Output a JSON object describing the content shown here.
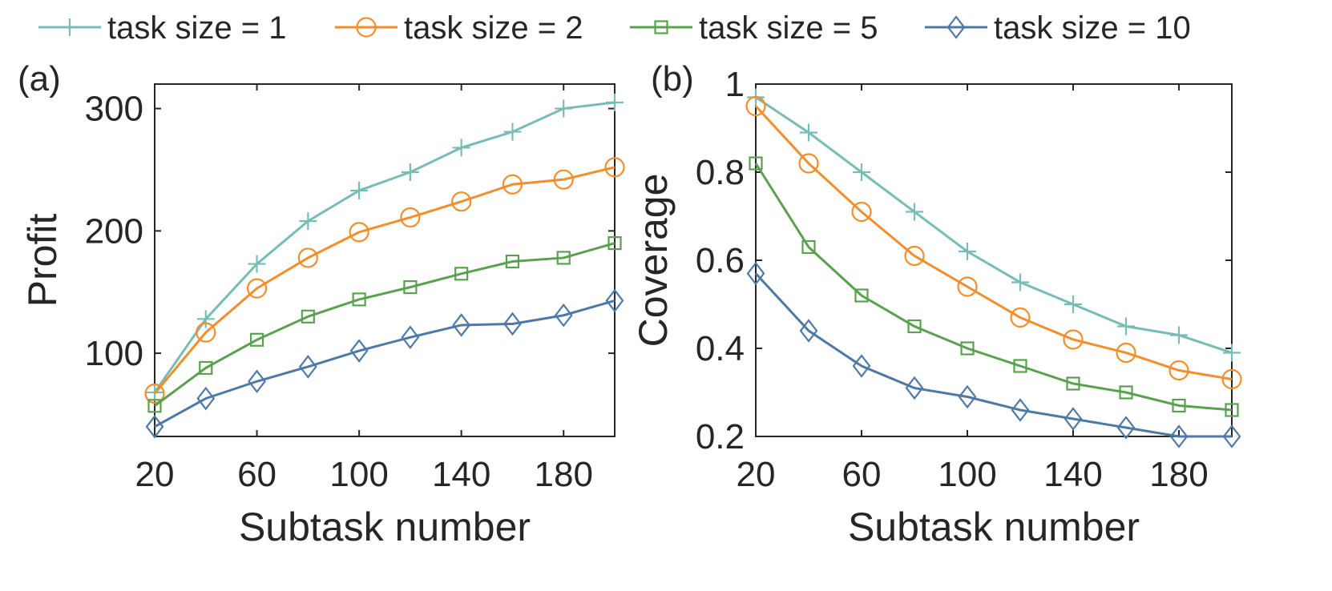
{
  "legend": [
    {
      "name": "task size = 1",
      "color": "#78BDB5",
      "marker": "plus"
    },
    {
      "name": "task size = 2",
      "color": "#F28E2B",
      "marker": "circle"
    },
    {
      "name": "task size = 5",
      "color": "#59A14F",
      "marker": "square"
    },
    {
      "name": "task size = 10",
      "color": "#4E79A7",
      "marker": "diamond"
    }
  ],
  "chart_data": [
    {
      "type": "line",
      "panel_label": "(a)",
      "xlabel": "Subtask number",
      "ylabel": "Profit",
      "xlim": [
        20,
        200
      ],
      "ylim": [
        32,
        320
      ],
      "xticks": [
        20,
        60,
        100,
        140,
        180
      ],
      "yticks": [
        100,
        200,
        300
      ],
      "x": [
        20,
        40,
        60,
        80,
        100,
        120,
        140,
        160,
        180,
        200
      ],
      "series": [
        {
          "name": "task size = 1",
          "values": [
            68,
            128,
            173,
            208,
            233,
            248,
            268,
            281,
            300,
            305
          ]
        },
        {
          "name": "task size = 2",
          "values": [
            67,
            117,
            153,
            178,
            199,
            211,
            224,
            238,
            242,
            252
          ]
        },
        {
          "name": "task size = 5",
          "values": [
            57,
            88,
            111,
            130,
            144,
            154,
            165,
            175,
            178,
            190
          ]
        },
        {
          "name": "task size = 10",
          "values": [
            40,
            63,
            77,
            89,
            102,
            113,
            123,
            124,
            131,
            143
          ]
        }
      ]
    },
    {
      "type": "line",
      "panel_label": "(b)",
      "xlabel": "Subtask number",
      "ylabel": "Coverage",
      "xlim": [
        20,
        200
      ],
      "ylim": [
        0.2,
        1.0
      ],
      "xticks": [
        20,
        60,
        100,
        140,
        180
      ],
      "yticks": [
        0.2,
        0.4,
        0.6,
        0.8,
        1
      ],
      "ytick_labels": [
        "0.2",
        "0.4",
        "0.6",
        "0.8",
        "1"
      ],
      "x": [
        20,
        40,
        60,
        80,
        100,
        120,
        140,
        160,
        180,
        200
      ],
      "series": [
        {
          "name": "task size = 1",
          "values": [
            0.97,
            0.89,
            0.8,
            0.71,
            0.62,
            0.55,
            0.5,
            0.45,
            0.43,
            0.39
          ]
        },
        {
          "name": "task size = 2",
          "values": [
            0.95,
            0.82,
            0.71,
            0.61,
            0.54,
            0.47,
            0.42,
            0.39,
            0.35,
            0.33
          ]
        },
        {
          "name": "task size = 5",
          "values": [
            0.82,
            0.63,
            0.52,
            0.45,
            0.4,
            0.36,
            0.32,
            0.3,
            0.27,
            0.26
          ]
        },
        {
          "name": "task size = 10",
          "values": [
            0.57,
            0.44,
            0.36,
            0.31,
            0.29,
            0.26,
            0.24,
            0.22,
            0.2,
            0.2
          ]
        }
      ]
    }
  ]
}
